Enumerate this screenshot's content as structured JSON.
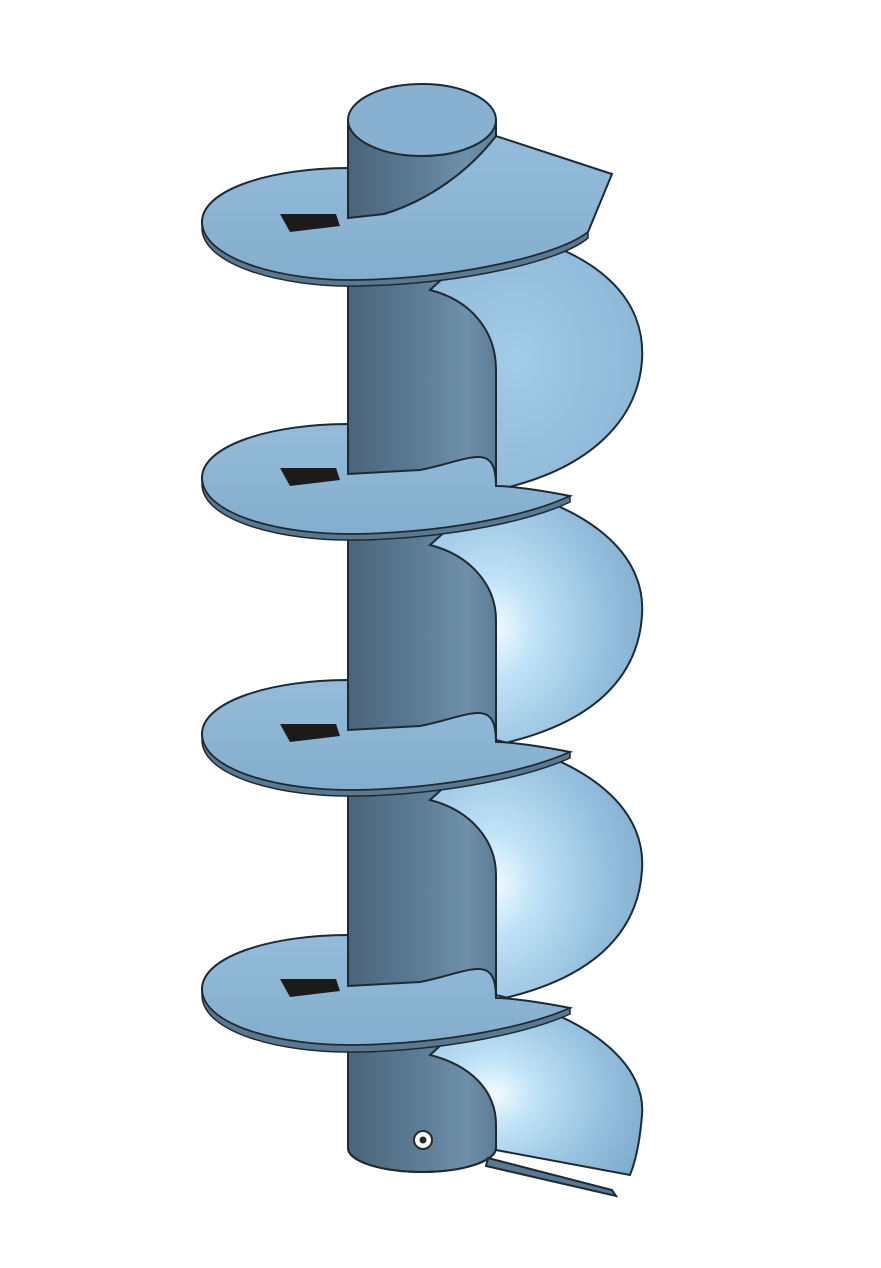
{
  "viewport": {
    "background": "#ffffff"
  },
  "model": {
    "type": "helical-auger",
    "turns": 4,
    "colors": {
      "shaft_dark": "#4f6b80",
      "shaft_mid": "#5f7f98",
      "shaft_light": "#7ea2bf",
      "shaft_top": "#8cb0cf",
      "flight_top": "#8fb6d6",
      "flight_under": "#a9d2ee",
      "flight_highlight": "#e8f6ff",
      "outline": "#1e2a33",
      "slot": "#1b1b1b"
    },
    "origin_marker_icon": "origin-point-icon"
  }
}
